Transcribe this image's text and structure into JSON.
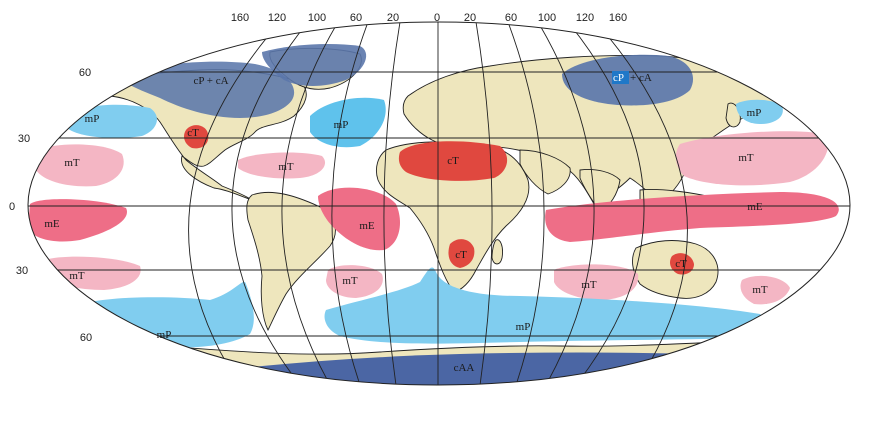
{
  "longitude_labels": [
    "160",
    "120",
    "100",
    "60",
    "20",
    "0",
    "20",
    "60",
    "100",
    "120",
    "160"
  ],
  "latitude_labels": {
    "n60": "60",
    "n30": "30",
    "eq": "0",
    "s30": "30",
    "s60": "60"
  },
  "air_masses": {
    "cpca_na": "cP + cA",
    "cpca_asia_cp": "cP",
    "cpca_asia_rest": " + cA",
    "mp_npac_e": "mP",
    "mp_natl": "mP",
    "mp_npac_w": "mP",
    "ct_na": "cT",
    "ct_sahara": "cT",
    "ct_safrica": "cT",
    "ct_aus": "cT",
    "mt_epac": "mT",
    "mt_caribbean": "mT",
    "mt_wpac": "mT",
    "me_epac": "mE",
    "me_atl": "mE",
    "me_indo": "mE",
    "mt_sepac": "mT",
    "mt_satl": "mT",
    "mt_sindian": "mT",
    "mt_nz": "mT",
    "mp_spac": "mP",
    "mp_southern": "mP",
    "caa": "cAA"
  },
  "colors": {
    "land": "#eee6bd",
    "continental_polar": "#5b77ab",
    "maritime_polar": "#80cdef",
    "continental_tropical": "#e0483f",
    "maritime_tropical": "#f4b6c4",
    "maritime_equatorial": "#ee6e87",
    "antarctic": "#4b66a4",
    "cp_highlight": "#1f78c8"
  }
}
